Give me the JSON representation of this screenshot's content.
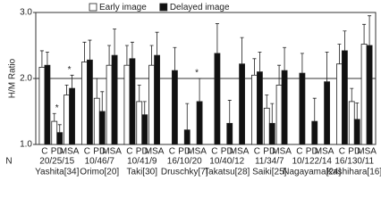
{
  "chart_data": {
    "type": "grouped-bar",
    "y_label": "H/M Ratio",
    "row_label": "N",
    "subcategories": [
      "C",
      "PD",
      "MSA"
    ],
    "groups": [
      {
        "name": "Yashita[34]",
        "n": "20/25/15"
      },
      {
        "name": "Orimo[20]",
        "n": "10/46/7"
      },
      {
        "name": "Taki[30]",
        "n": "10/41/9"
      },
      {
        "name": "Druschky[7]",
        "n": "16/10/20"
      },
      {
        "name": "Takatsu[28]",
        "n": "10/40/12"
      },
      {
        "name": "Saiki[25]",
        "n": "11/34/7"
      },
      {
        "name": "Nagayama[24]",
        "n": "10/122/14"
      },
      {
        "name": "Kashihara[16]",
        "n": "16/130/11"
      }
    ],
    "series": [
      {
        "name": "Early image",
        "color": "#ffffff",
        "values": [
          2.17,
          1.35,
          1.75,
          2.25,
          1.7,
          2.2,
          2.2,
          1.65,
          2.2,
          null,
          null,
          null,
          null,
          null,
          null,
          2.05,
          1.55,
          1.9,
          null,
          null,
          null,
          2.22,
          1.65,
          2.52
        ],
        "errors": [
          0.25,
          0.12,
          0.15,
          0.3,
          0.3,
          0.3,
          0.3,
          0.25,
          0.3,
          null,
          null,
          null,
          null,
          null,
          null,
          0.25,
          0.2,
          0.3,
          null,
          null,
          null,
          0.3,
          0.2,
          0.3
        ]
      },
      {
        "name": "Delayed image",
        "color": "#111111",
        "values": [
          2.2,
          1.18,
          1.85,
          2.28,
          1.5,
          2.35,
          2.3,
          1.45,
          2.35,
          2.12,
          1.22,
          1.65,
          2.38,
          1.32,
          2.22,
          2.1,
          1.32,
          2.12,
          2.08,
          1.35,
          1.95,
          2.42,
          1.38,
          2.5
        ],
        "errors": [
          0.2,
          0.12,
          0.2,
          0.3,
          0.3,
          0.4,
          0.25,
          0.2,
          0.35,
          0.35,
          0.4,
          0.35,
          0.45,
          0.35,
          0.4,
          0.3,
          0.3,
          0.35,
          0.3,
          0.35,
          0.45,
          0.3,
          0.25,
          0.45
        ]
      }
    ],
    "annotations": [
      {
        "text": "*",
        "group": 0,
        "sub": 1
      },
      {
        "text": "*",
        "group": 0,
        "sub": 2
      },
      {
        "text": "*",
        "group": 3,
        "sub": 2
      }
    ],
    "ylim": [
      1.0,
      3.0
    ],
    "yticks": [
      {
        "value": 1.0,
        "label": "1.0"
      },
      {
        "value": 2.0,
        "label": "2.0"
      },
      {
        "value": 3.0,
        "label": "3.0"
      }
    ],
    "reference_line": 2.0,
    "legend_position": "top"
  }
}
